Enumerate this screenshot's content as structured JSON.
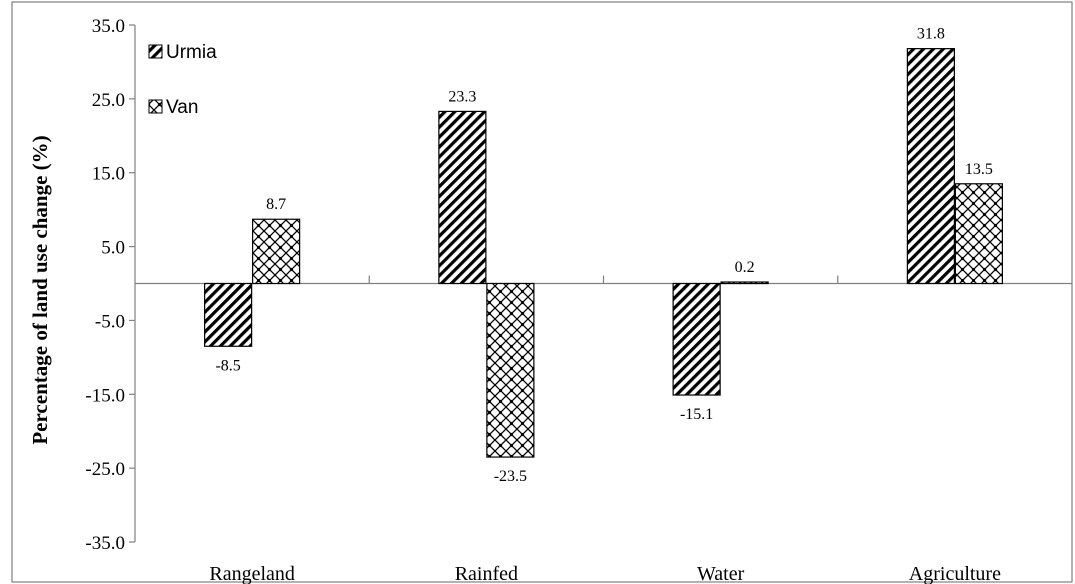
{
  "chart_data": {
    "type": "bar",
    "title": "",
    "xlabel": "",
    "ylabel": "Percentage of land use change (%)",
    "categories": [
      "Rangeland",
      "Rainfed",
      "Water",
      "Agriculture"
    ],
    "series": [
      {
        "name": "Urmia",
        "values": [
          -8.5,
          23.3,
          -15.1,
          31.8
        ],
        "pattern": "diagonal-hatch",
        "labels": [
          "-8.5",
          "23.3",
          "-15.1",
          "31.8"
        ]
      },
      {
        "name": "Van",
        "values": [
          8.7,
          -23.5,
          0.2,
          13.5
        ],
        "pattern": "crosshatch",
        "labels": [
          "8.7",
          "-23.5",
          "0.2",
          "13.5"
        ]
      }
    ],
    "ylim": [
      -35,
      35
    ],
    "yticks": [
      "35.0",
      "25.0",
      "15.0",
      "5.0",
      "-5.0",
      "-15.0",
      "-25.0",
      "-35.0"
    ],
    "ytick_values": [
      35,
      25,
      15,
      5,
      -5,
      -15,
      -25,
      -35
    ],
    "grid": false,
    "legend_position": "top-left",
    "colors": {
      "bar_fill": "#ffffff",
      "stroke": "#000000",
      "axis": "#808080"
    }
  }
}
